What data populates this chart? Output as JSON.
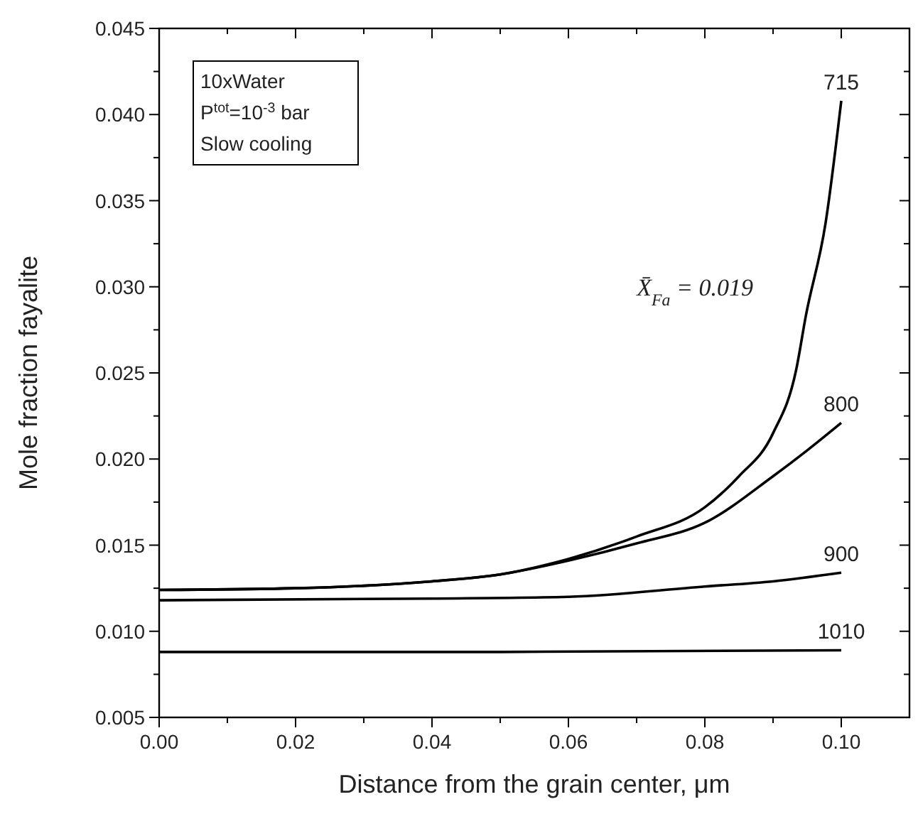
{
  "chart_data": {
    "type": "line",
    "xlabel": "Distance from the grain center, μm",
    "ylabel": "Mole fraction fayalite",
    "xlim": [
      0,
      0.11
    ],
    "ylim": [
      0.005,
      0.045
    ],
    "xticks": [
      {
        "value": 0,
        "label": "0.00"
      },
      {
        "value": 0.01,
        "label": null
      },
      {
        "value": 0.02,
        "label": "0.02"
      },
      {
        "value": 0.03,
        "label": null
      },
      {
        "value": 0.04,
        "label": "0.04"
      },
      {
        "value": 0.05,
        "label": null
      },
      {
        "value": 0.06,
        "label": "0.06"
      },
      {
        "value": 0.07,
        "label": null
      },
      {
        "value": 0.08,
        "label": "0.08"
      },
      {
        "value": 0.09,
        "label": null
      },
      {
        "value": 0.1,
        "label": "0.10"
      }
    ],
    "yticks": [
      0.005,
      {
        "value": 0.0075,
        "label": null
      },
      {
        "value": 0.01,
        "label": "0.010"
      },
      {
        "value": 0.0125,
        "label": null
      },
      0.015,
      {
        "value": 0.0175,
        "label": null
      },
      {
        "value": 0.02,
        "label": "0.020"
      },
      {
        "value": 0.0225,
        "label": null
      },
      0.025,
      {
        "value": 0.0275,
        "label": null
      },
      {
        "value": 0.03,
        "label": "0.030"
      },
      {
        "value": 0.0325,
        "label": null
      },
      0.035,
      {
        "value": 0.0375,
        "label": null
      },
      {
        "value": 0.04,
        "label": "0.040"
      },
      {
        "value": 0.0425,
        "label": null
      },
      0.045
    ],
    "grid": false,
    "legend": "right",
    "marker": "none",
    "line_style": "solid",
    "x": [
      0,
      0.02,
      0.04,
      0.05,
      0.06,
      0.07,
      0.08,
      0.085,
      0.09,
      0.0934,
      0.0948,
      0.0977,
      0.1
    ],
    "series": [
      {
        "name": "715",
        "color": "#000000",
        "values": [
          0.0124,
          0.0125,
          0.0129,
          0.0133,
          0.0142,
          0.0155,
          0.0172,
          0.019,
          0.0215,
          0.0252,
          0.0283,
          0.0337,
          0.0408
        ]
      },
      {
        "name": "800",
        "color": "#000000",
        "x": [
          0,
          0.02,
          0.04,
          0.05,
          0.06,
          0.07,
          0.08,
          0.09,
          0.095,
          0.1
        ],
        "values": [
          0.0124,
          0.0125,
          0.0129,
          0.0133,
          0.0141,
          0.0151,
          0.0163,
          0.019,
          0.0205,
          0.0221
        ]
      },
      {
        "name": "900",
        "color": "#000000",
        "x": [
          0,
          0.04,
          0.06,
          0.08,
          0.09,
          0.1
        ],
        "values": [
          0.0118,
          0.0119,
          0.012,
          0.0126,
          0.0129,
          0.0134
        ]
      },
      {
        "name": "1010",
        "color": "#000000",
        "x": [
          0,
          0.05,
          0.1
        ],
        "values": [
          0.0088,
          0.0088,
          0.0089
        ]
      }
    ],
    "annotations": [
      "10xWater",
      "P$^{tot}$=10$^{-3}$ bar",
      "Slow cooling",
      "X̄$_{Fa}$ = 0.019"
    ]
  }
}
